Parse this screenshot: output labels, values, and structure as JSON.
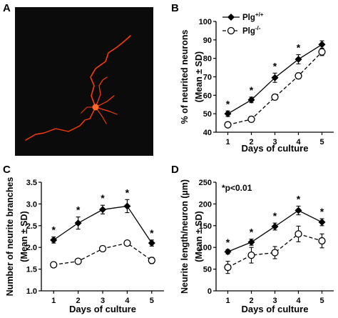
{
  "panel_a": {
    "letter": "A"
  },
  "legend": [
    {
      "label": "Plg",
      "sup": "+/+",
      "marker": "diamond",
      "dash": "solid"
    },
    {
      "label": "Plg",
      "sup": "-/-",
      "marker": "circle",
      "dash": "dashed"
    }
  ],
  "colors": {
    "neuron": "#ff3a0a",
    "micrograph_bg": "#0b0b0b",
    "ink": "#000000"
  },
  "chart_data": [
    {
      "panel": "B",
      "type": "line",
      "title": "",
      "xlabel": "Days of culture",
      "ylabel": [
        "% of neurited neurons",
        "(Mean ± SD)"
      ],
      "x": [
        1,
        2,
        3,
        4,
        5
      ],
      "xticks": [
        "1",
        "2",
        "3",
        "4",
        "5"
      ],
      "ylim": [
        40,
        100
      ],
      "yticks": [
        "40",
        "50",
        "60",
        "70",
        "80",
        "90",
        "100"
      ],
      "series": [
        {
          "name": "Plg+/+",
          "values": [
            50,
            57.5,
            69.5,
            79.5,
            87.5
          ],
          "err": [
            1.5,
            1.5,
            2.5,
            2.5,
            2
          ]
        },
        {
          "name": "Plg-/-",
          "values": [
            44,
            47,
            59,
            70.5,
            83.5
          ],
          "err": [
            1.5,
            1.5,
            1.5,
            1.5,
            2
          ]
        }
      ],
      "significance": [
        1,
        2,
        3,
        4
      ],
      "annotation": ""
    },
    {
      "panel": "C",
      "type": "line",
      "title": "",
      "xlabel": "Days of culture",
      "ylabel": [
        "Number of neurite branches",
        "(Mean ± SD)"
      ],
      "x": [
        1,
        2,
        3,
        4,
        5
      ],
      "xticks": [
        "1",
        "2",
        "3",
        "4",
        "5"
      ],
      "ylim": [
        1.0,
        3.5
      ],
      "yticks": [
        "1.0",
        "1.5",
        "2.0",
        "2.5",
        "3.0",
        "3.5"
      ],
      "series": [
        {
          "name": "Plg+/+",
          "values": [
            2.17,
            2.56,
            2.87,
            2.95,
            2.1
          ],
          "err": [
            0.07,
            0.14,
            0.1,
            0.15,
            0.07
          ]
        },
        {
          "name": "Plg-/-",
          "values": [
            1.6,
            1.68,
            1.97,
            2.1,
            1.7
          ],
          "err": [
            0.06,
            0.06,
            0.05,
            0.06,
            0.07
          ]
        }
      ],
      "significance": [
        1,
        2,
        3,
        4,
        5
      ],
      "annotation": ""
    },
    {
      "panel": "D",
      "type": "line",
      "title": "",
      "xlabel": "Days of culture",
      "ylabel": [
        "Neurite length/neuron (µm)",
        "(Mean ± SD)"
      ],
      "x": [
        1,
        2,
        3,
        4,
        5
      ],
      "xticks": [
        "1",
        "2",
        "3",
        "4",
        "5"
      ],
      "ylim": [
        0,
        250
      ],
      "yticks": [
        "0",
        "50",
        "100",
        "150",
        "200",
        "250"
      ],
      "series": [
        {
          "name": "Plg+/+",
          "values": [
            90,
            112,
            148,
            185,
            158
          ],
          "err": [
            5,
            7,
            8,
            10,
            8
          ]
        },
        {
          "name": "Plg-/-",
          "values": [
            54,
            82,
            88,
            131,
            115
          ],
          "err": [
            14,
            18,
            14,
            18,
            16
          ]
        }
      ],
      "significance": [
        1,
        2,
        3,
        4,
        5
      ],
      "annotation": "*p<0.01"
    }
  ]
}
